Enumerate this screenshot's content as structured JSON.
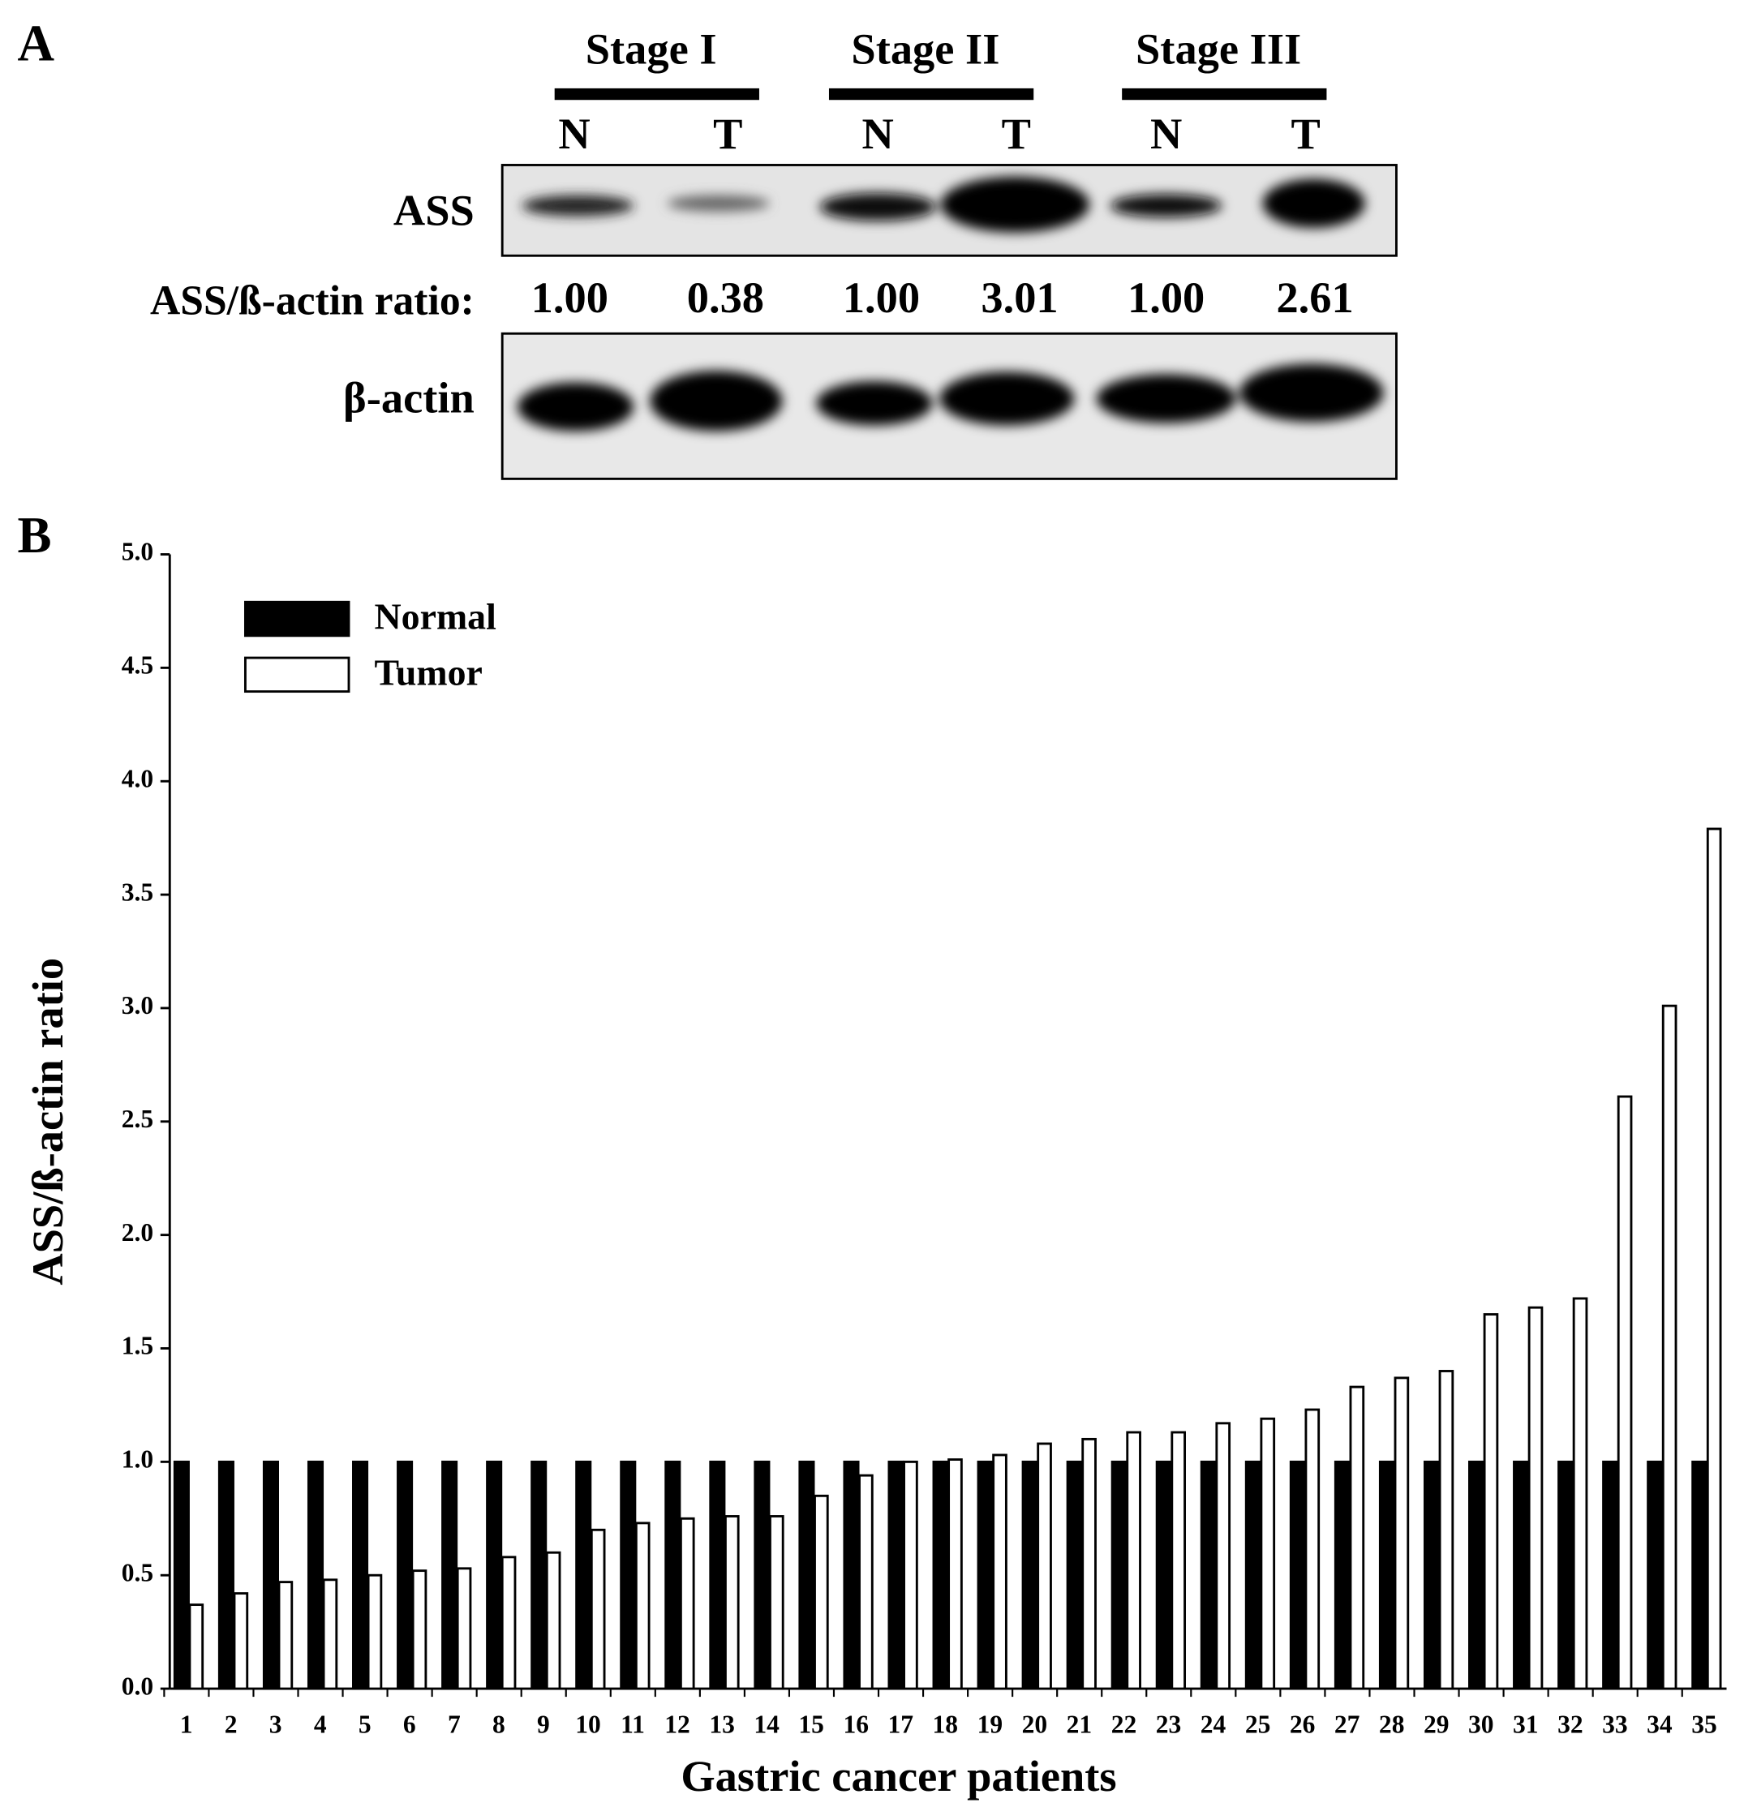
{
  "panel_a": {
    "label": "A",
    "stages": [
      "Stage I",
      "Stage II",
      "Stage III"
    ],
    "lanes": [
      "N",
      "T",
      "N",
      "T",
      "N",
      "T"
    ],
    "rows": [
      "ASS",
      "β-actin"
    ],
    "ratio_label": "ASS/ß-actin ratio:",
    "ratios": [
      "1.00",
      "0.38",
      "1.00",
      "3.01",
      "1.00",
      "2.61"
    ]
  },
  "chart_data": {
    "type": "bar",
    "panel_label": "B",
    "xlabel": "Gastric cancer patients",
    "ylabel": "ASS/ß-actin ratio",
    "categories": [
      "1",
      "2",
      "3",
      "4",
      "5",
      "6",
      "7",
      "8",
      "9",
      "10",
      "11",
      "12",
      "13",
      "14",
      "15",
      "16",
      "17",
      "18",
      "19",
      "20",
      "21",
      "22",
      "23",
      "24",
      "25",
      "26",
      "27",
      "28",
      "29",
      "30",
      "31",
      "32",
      "33",
      "34",
      "35"
    ],
    "series": [
      {
        "name": "Normal",
        "color": "#000000",
        "values": [
          1,
          1,
          1,
          1,
          1,
          1,
          1,
          1,
          1,
          1,
          1,
          1,
          1,
          1,
          1,
          1,
          1,
          1,
          1,
          1,
          1,
          1,
          1,
          1,
          1,
          1,
          1,
          1,
          1,
          1,
          1,
          1,
          1,
          1,
          1
        ]
      },
      {
        "name": "Tumor",
        "color": "#ffffff",
        "values": [
          0.37,
          0.42,
          0.47,
          0.48,
          0.5,
          0.52,
          0.53,
          0.58,
          0.6,
          0.7,
          0.73,
          0.75,
          0.76,
          0.76,
          0.85,
          0.94,
          1.0,
          1.01,
          1.03,
          1.08,
          1.1,
          1.13,
          1.13,
          1.17,
          1.19,
          1.23,
          1.33,
          1.37,
          1.4,
          1.65,
          1.68,
          1.72,
          2.61,
          3.01,
          3.79
        ]
      }
    ],
    "ylim": [
      0,
      5
    ],
    "yticks": [
      {
        "value": 0,
        "label": "0.0"
      },
      {
        "value": 0.5,
        "label": "0.5"
      },
      {
        "value": 1,
        "label": "1.0"
      },
      {
        "value": 1.5,
        "label": "1.5"
      },
      {
        "value": 2,
        "label": "2.0"
      },
      {
        "value": 2.5,
        "label": "2.5"
      },
      {
        "value": 3,
        "label": "3.0"
      },
      {
        "value": 3.5,
        "label": "3.5"
      },
      {
        "value": 4,
        "label": "4.0"
      },
      {
        "value": 4.5,
        "label": "4.5"
      },
      {
        "value": 5,
        "label": "5.0"
      }
    ],
    "legend": "upper left"
  }
}
